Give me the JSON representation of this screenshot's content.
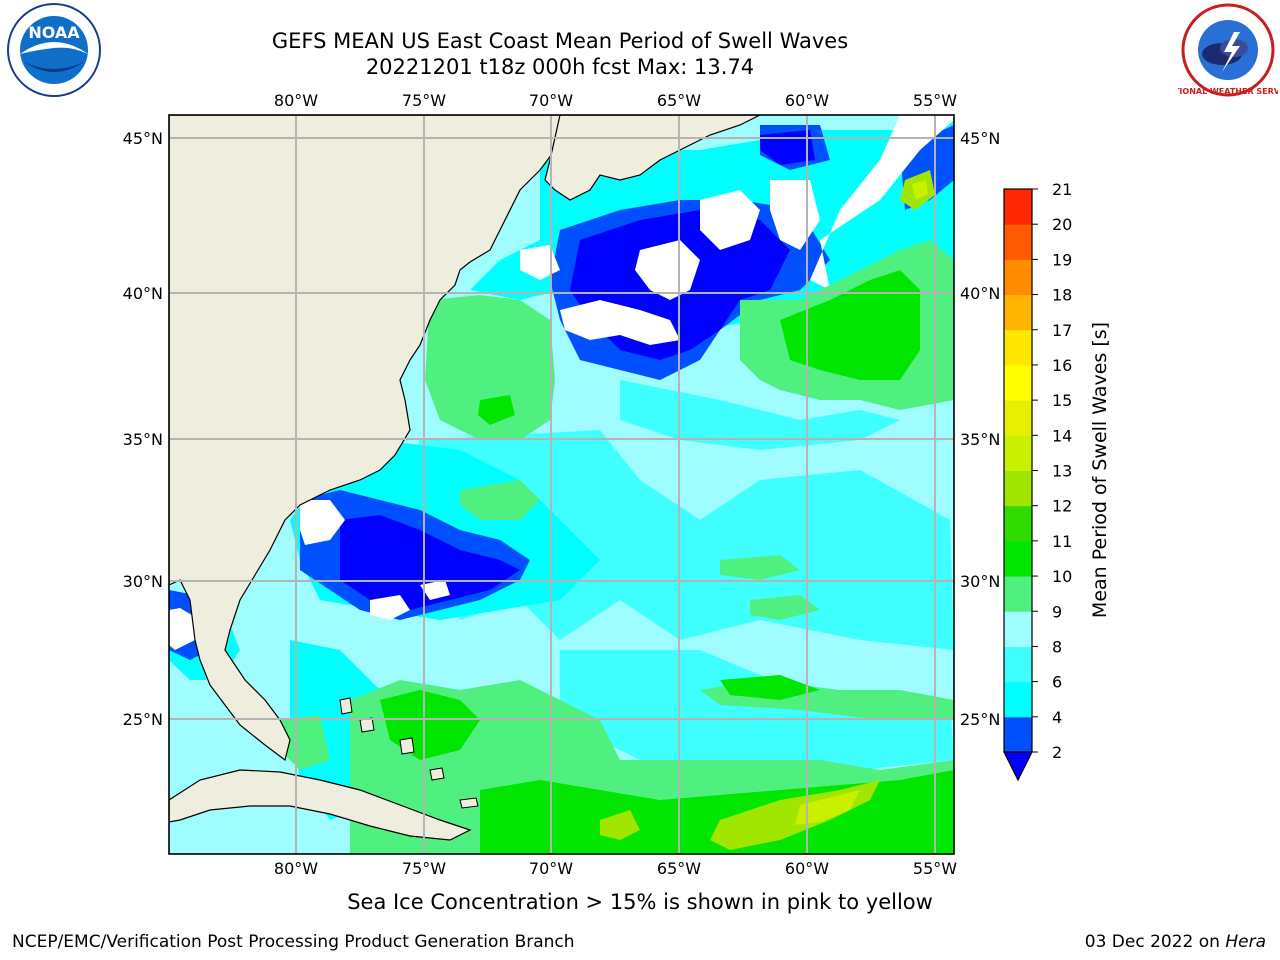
{
  "header": {
    "title_line1": "GEFS MEAN US East Coast Mean Period of Swell Waves",
    "title_line2": "20221201 t18z 000h fcst   Max: 13.74"
  },
  "logos": {
    "left": "noaa-logo",
    "left_text": "NOAA",
    "right": "nws-logo",
    "right_text": "NATIONAL WEATHER SERVICE"
  },
  "map": {
    "lon_labels": [
      "80°W",
      "75°W",
      "70°W",
      "65°W",
      "60°W",
      "55°W"
    ],
    "lat_labels": [
      "45°N",
      "40°N",
      "35°N",
      "30°N",
      "25°N"
    ],
    "land_color": "#efedde",
    "ocean_colors": {
      "lt2": "#0000ff",
      "2": "#0050ff",
      "4": "#00ffff",
      "6": "#40ffff",
      "8": "#9ffcff",
      "9": "#50f080",
      "10": "#00e600",
      "11": "#30dc00",
      "12": "#a0e600",
      "13": "#c8f000",
      "14": "#e6f000"
    }
  },
  "colorbar": {
    "label": "Mean Period of Swell Waves [s]",
    "ticks": [
      "2",
      "4",
      "6",
      "8",
      "9",
      "10",
      "11",
      "12",
      "13",
      "14",
      "15",
      "16",
      "17",
      "18",
      "19",
      "20",
      "21"
    ],
    "colors": [
      "#0050ff",
      "#00ffff",
      "#40ffff",
      "#9ffcff",
      "#50f080",
      "#00e600",
      "#30dc00",
      "#a0e600",
      "#c8f000",
      "#e6f000",
      "#ffff00",
      "#ffe600",
      "#ffb400",
      "#ff8c00",
      "#ff5a00",
      "#ff2800"
    ],
    "under_color": "#0000ff"
  },
  "note": "Sea Ice Concentration > 15% is shown in pink to yellow",
  "footer": {
    "left": "NCEP/EMC/Verification Post Processing Product Generation Branch",
    "right_date": "03 Dec 2022 on ",
    "right_machine": "Hera"
  }
}
